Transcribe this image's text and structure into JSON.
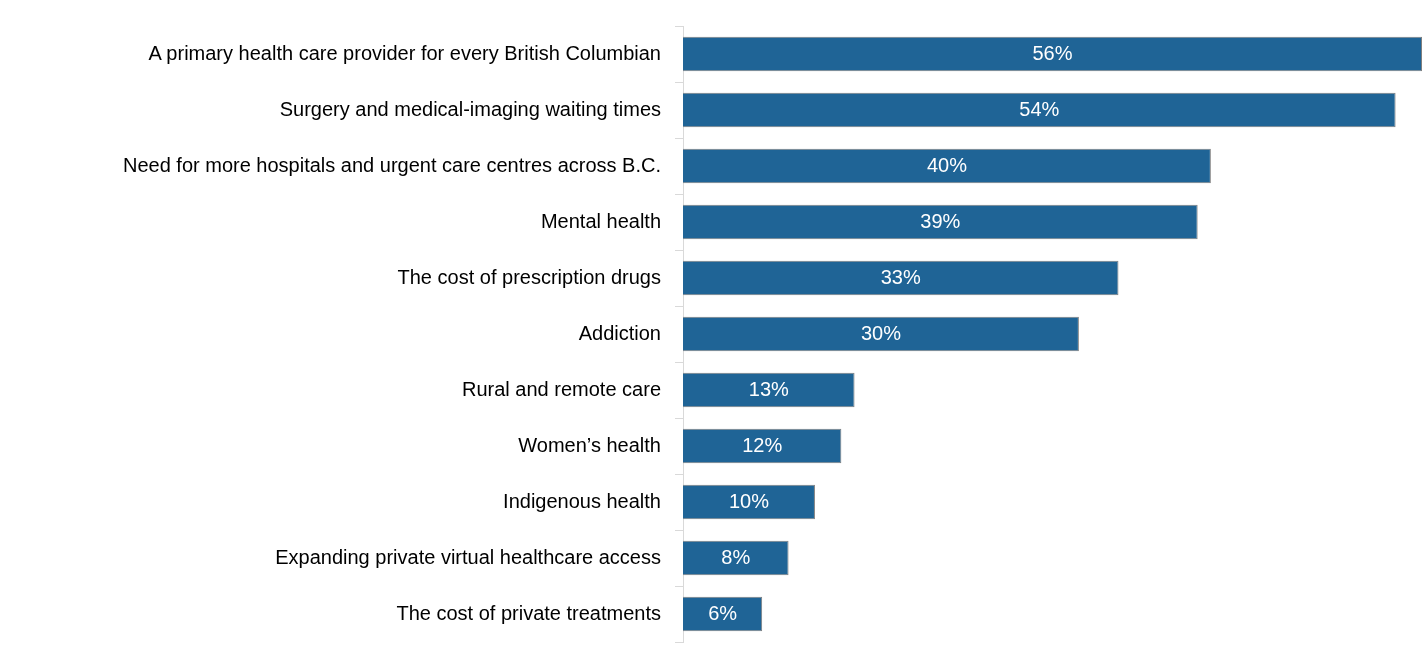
{
  "chart_data": {
    "type": "bar",
    "orientation": "horizontal",
    "categories": [
      "A primary health care provider for every British Columbian",
      "Surgery and medical-imaging waiting times",
      "Need for more hospitals and urgent care centres across B.C.",
      "Mental health",
      "The cost of prescription drugs",
      "Addiction",
      "Rural and remote care",
      "Women’s health",
      "Indigenous health",
      "Expanding private virtual healthcare access",
      "The cost of private treatments"
    ],
    "values": [
      56,
      54,
      40,
      39,
      33,
      30,
      13,
      12,
      10,
      8,
      6
    ],
    "value_labels": [
      "56%",
      "54%",
      "40%",
      "39%",
      "33%",
      "30%",
      "13%",
      "12%",
      "10%",
      "8%",
      "6%"
    ],
    "color": "#1f6496",
    "xlim": [
      0,
      56
    ],
    "tick_labels": "y"
  }
}
